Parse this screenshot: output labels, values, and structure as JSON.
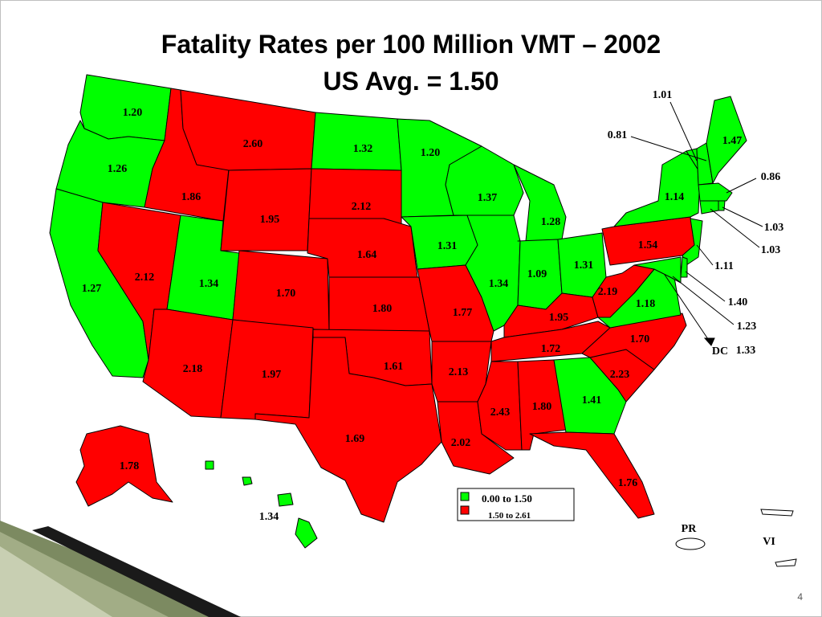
{
  "slide": {
    "title_line1": "Fatality Rates per 100 Million VMT – 2002",
    "title_line2": "US Avg. = 1.50",
    "page_number": "4"
  },
  "legend": {
    "items": [
      {
        "label": "0.00 to 1.50",
        "color": "#00ff00"
      },
      {
        "label": "1.50 to 2.61",
        "color": "#ff0000"
      }
    ]
  },
  "colors": {
    "low": "#00ff00",
    "high": "#ff0000",
    "outline": "#000000"
  },
  "states": [
    {
      "name": "Washington",
      "value": "1.20"
    },
    {
      "name": "Oregon",
      "value": "1.26"
    },
    {
      "name": "California",
      "value": "1.27"
    },
    {
      "name": "Idaho",
      "value": "1.86"
    },
    {
      "name": "Nevada",
      "value": "2.12"
    },
    {
      "name": "Utah",
      "value": "1.34"
    },
    {
      "name": "Arizona",
      "value": "2.18"
    },
    {
      "name": "Montana",
      "value": "2.60"
    },
    {
      "name": "Wyoming",
      "value": "1.95"
    },
    {
      "name": "Colorado",
      "value": "1.70"
    },
    {
      "name": "New Mexico",
      "value": "1.97"
    },
    {
      "name": "North Dakota",
      "value": "1.32"
    },
    {
      "name": "South Dakota",
      "value": "2.12"
    },
    {
      "name": "Nebraska",
      "value": "1.64"
    },
    {
      "name": "Kansas",
      "value": "1.80"
    },
    {
      "name": "Oklahoma",
      "value": "1.61"
    },
    {
      "name": "Texas",
      "value": "1.69"
    },
    {
      "name": "Minnesota",
      "value": "1.20"
    },
    {
      "name": "Iowa",
      "value": "1.31"
    },
    {
      "name": "Missouri",
      "value": "1.77"
    },
    {
      "name": "Arkansas",
      "value": "2.13"
    },
    {
      "name": "Louisiana",
      "value": "2.02"
    },
    {
      "name": "Wisconsin",
      "value": "1.37"
    },
    {
      "name": "Illinois",
      "value": "1.34"
    },
    {
      "name": "Michigan",
      "value": "1.28"
    },
    {
      "name": "Indiana",
      "value": "1.09"
    },
    {
      "name": "Ohio",
      "value": "1.31"
    },
    {
      "name": "Kentucky",
      "value": "1.95"
    },
    {
      "name": "Tennessee",
      "value": "1.72"
    },
    {
      "name": "Mississippi",
      "value": "2.43"
    },
    {
      "name": "Alabama",
      "value": "1.80"
    },
    {
      "name": "Georgia",
      "value": "1.41"
    },
    {
      "name": "Florida",
      "value": "1.76"
    },
    {
      "name": "South Carolina",
      "value": "2.23"
    },
    {
      "name": "North Carolina",
      "value": "1.70"
    },
    {
      "name": "Virginia",
      "value": "1.18"
    },
    {
      "name": "West Virginia",
      "value": "2.19"
    },
    {
      "name": "Pennsylvania",
      "value": "1.54"
    },
    {
      "name": "New York",
      "value": "1.14"
    },
    {
      "name": "Maine",
      "value": "1.47"
    },
    {
      "name": "Vermont",
      "value": "1.01"
    },
    {
      "name": "New Hampshire",
      "value": "0.81"
    },
    {
      "name": "Massachusetts",
      "value": "0.86"
    },
    {
      "name": "Rhode Island",
      "value": "1.03"
    },
    {
      "name": "Connecticut",
      "value": "1.03"
    },
    {
      "name": "New Jersey",
      "value": "1.11"
    },
    {
      "name": "Delaware",
      "value": "1.40"
    },
    {
      "name": "Maryland",
      "value": "1.23"
    },
    {
      "name": "District of Columbia",
      "value": "1.33"
    },
    {
      "name": "Alaska",
      "value": "1.78"
    },
    {
      "name": "Hawaii",
      "value": "1.34"
    }
  ],
  "dc_label": "DC",
  "territories": [
    {
      "name": "PR"
    },
    {
      "name": "VI"
    }
  ]
}
